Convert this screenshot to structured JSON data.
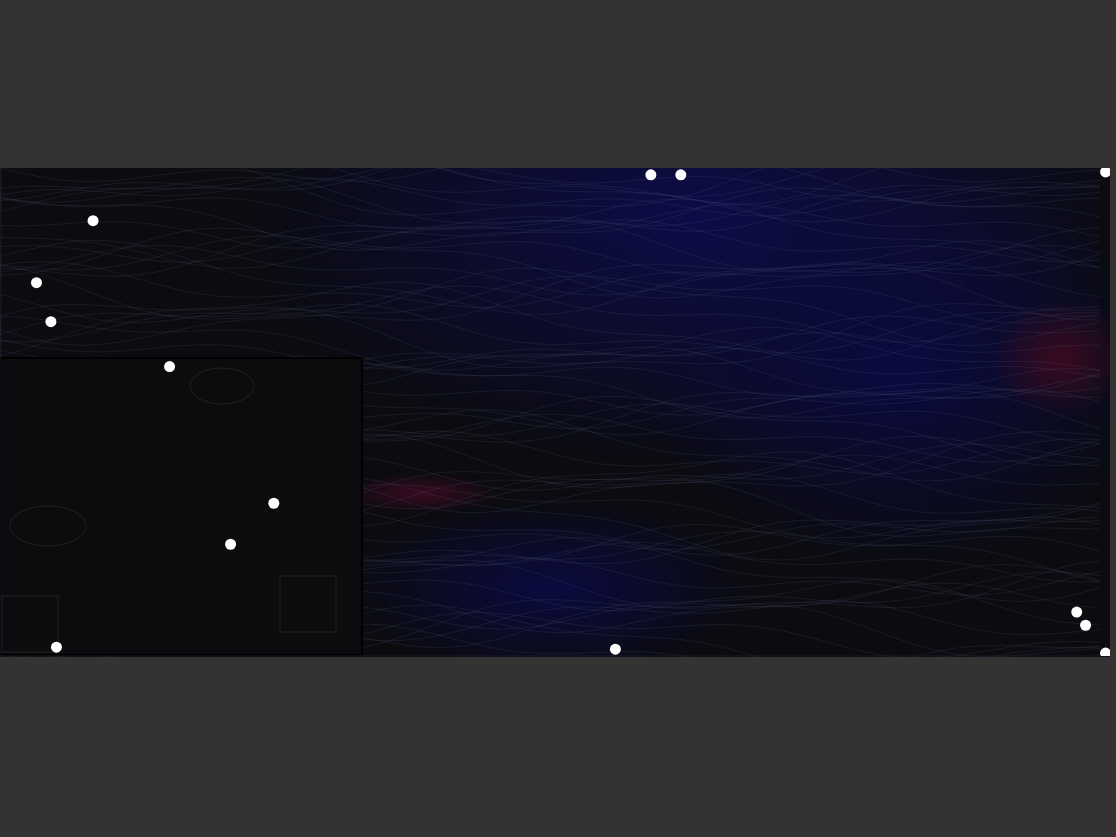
{
  "chart_data": {
    "type": "scatter",
    "x": [
      8.3,
      3.2,
      4.5,
      58.6,
      61.3,
      99.6,
      15.2,
      24.6,
      20.7,
      5.0,
      55.4,
      97.0,
      97.8,
      99.6
    ],
    "values": [
      89.2,
      76.5,
      68.5,
      98.6,
      98.6,
      99.2,
      59.3,
      31.3,
      22.9,
      1.8,
      1.4,
      9.0,
      6.3,
      0.6
    ],
    "xlim": [
      0,
      100
    ],
    "ylim": [
      0,
      100
    ],
    "xticks": [
      0,
      100
    ],
    "yticks": [
      0,
      100
    ],
    "tick_labels": false,
    "grid": false,
    "color": "#ffffff",
    "marker": "circle"
  }
}
